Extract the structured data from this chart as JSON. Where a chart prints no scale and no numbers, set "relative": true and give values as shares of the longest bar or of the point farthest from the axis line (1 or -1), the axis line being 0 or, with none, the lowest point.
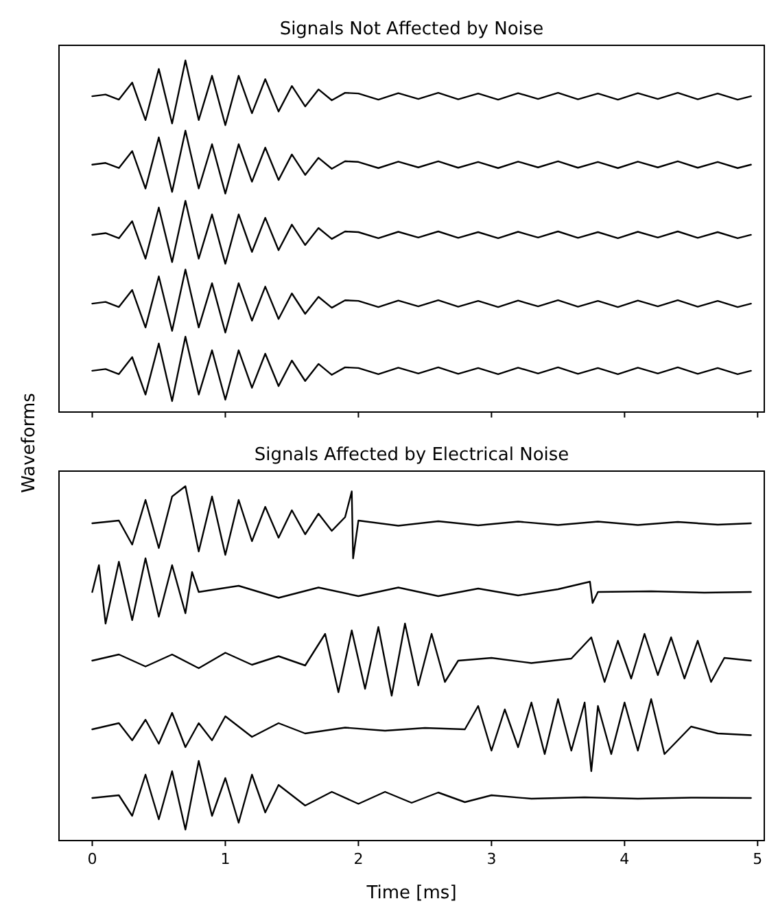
{
  "chart_data": [
    {
      "type": "line",
      "title": "Signals Not Affected by Noise",
      "relative": true,
      "tick_labels": false,
      "xlim": [
        -0.25,
        5.05
      ],
      "xticks": [
        0,
        1,
        2,
        3,
        4,
        5
      ],
      "x": [
        0,
        0.1,
        0.2,
        0.3,
        0.4,
        0.5,
        0.6,
        0.7,
        0.8,
        0.9,
        1.0,
        1.1,
        1.2,
        1.3,
        1.4,
        1.5,
        1.6,
        1.7,
        1.8,
        1.9,
        2.0,
        2.15,
        2.3,
        2.45,
        2.6,
        2.75,
        2.9,
        3.05,
        3.2,
        3.35,
        3.5,
        3.65,
        3.8,
        3.95,
        4.1,
        4.25,
        4.4,
        4.55,
        4.7,
        4.85,
        4.95
      ],
      "series": [
        {
          "color": "#000000",
          "values": [
            0.895,
            0.9,
            0.885,
            0.935,
            0.825,
            0.975,
            0.815,
            1.0,
            0.825,
            0.955,
            0.81,
            0.955,
            0.845,
            0.945,
            0.85,
            0.925,
            0.865,
            0.915,
            0.883,
            0.905,
            0.903,
            0.885,
            0.904,
            0.887,
            0.905,
            0.886,
            0.903,
            0.885,
            0.904,
            0.887,
            0.905,
            0.886,
            0.903,
            0.885,
            0.904,
            0.887,
            0.905,
            0.886,
            0.903,
            0.885,
            0.895
          ]
        },
        {
          "color": "#000000",
          "values": [
            0.694,
            0.699,
            0.684,
            0.734,
            0.624,
            0.774,
            0.614,
            0.794,
            0.624,
            0.754,
            0.609,
            0.754,
            0.644,
            0.744,
            0.649,
            0.724,
            0.664,
            0.714,
            0.682,
            0.704,
            0.702,
            0.684,
            0.703,
            0.686,
            0.704,
            0.685,
            0.702,
            0.684,
            0.703,
            0.686,
            0.704,
            0.685,
            0.702,
            0.684,
            0.703,
            0.686,
            0.704,
            0.685,
            0.702,
            0.684,
            0.694
          ]
        },
        {
          "color": "#000000",
          "values": [
            0.488,
            0.493,
            0.478,
            0.528,
            0.418,
            0.568,
            0.408,
            0.588,
            0.418,
            0.548,
            0.403,
            0.548,
            0.438,
            0.538,
            0.443,
            0.518,
            0.458,
            0.508,
            0.476,
            0.498,
            0.496,
            0.478,
            0.497,
            0.48,
            0.498,
            0.479,
            0.496,
            0.478,
            0.497,
            0.48,
            0.498,
            0.479,
            0.496,
            0.478,
            0.497,
            0.48,
            0.498,
            0.479,
            0.496,
            0.478,
            0.488
          ]
        },
        {
          "color": "#000000",
          "values": [
            0.286,
            0.291,
            0.276,
            0.326,
            0.216,
            0.366,
            0.206,
            0.386,
            0.216,
            0.346,
            0.201,
            0.346,
            0.236,
            0.336,
            0.241,
            0.316,
            0.256,
            0.306,
            0.274,
            0.296,
            0.294,
            0.276,
            0.295,
            0.278,
            0.296,
            0.277,
            0.294,
            0.276,
            0.295,
            0.278,
            0.296,
            0.277,
            0.294,
            0.276,
            0.295,
            0.278,
            0.296,
            0.277,
            0.294,
            0.276,
            0.286
          ]
        },
        {
          "color": "#000000",
          "values": [
            0.089,
            0.094,
            0.079,
            0.129,
            0.019,
            0.169,
            0,
            0.189,
            0.019,
            0.149,
            0.004,
            0.149,
            0.039,
            0.139,
            0.044,
            0.119,
            0.059,
            0.109,
            0.077,
            0.099,
            0.097,
            0.079,
            0.098,
            0.081,
            0.099,
            0.08,
            0.097,
            0.079,
            0.098,
            0.081,
            0.099,
            0.08,
            0.097,
            0.079,
            0.098,
            0.081,
            0.099,
            0.08,
            0.097,
            0.079,
            0.089
          ]
        }
      ]
    },
    {
      "type": "line",
      "title": "Signals Affected by Electrical Noise",
      "xlabel": "Time [ms]",
      "ylabel": "Waveforms",
      "relative": true,
      "tick_labels": "x",
      "xlim": [
        -0.25,
        5.05
      ],
      "xticks": [
        0,
        1,
        2,
        3,
        4,
        5
      ],
      "series": [
        {
          "color": "#000000",
          "x": [
            0,
            0.2,
            0.3,
            0.4,
            0.5,
            0.6,
            0.7,
            0.8,
            0.9,
            1.0,
            1.1,
            1.2,
            1.3,
            1.4,
            1.5,
            1.6,
            1.7,
            1.8,
            1.9,
            1.95,
            1.96,
            2.0,
            2.3,
            2.6,
            2.9,
            3.2,
            3.5,
            3.8,
            4.1,
            4.4,
            4.7,
            4.95
          ],
          "values": [
            0.892,
            0.9,
            0.83,
            0.96,
            0.82,
            0.97,
            1.0,
            0.81,
            0.97,
            0.8,
            0.96,
            0.84,
            0.94,
            0.85,
            0.93,
            0.86,
            0.92,
            0.87,
            0.91,
            0.985,
            0.79,
            0.9,
            0.885,
            0.898,
            0.886,
            0.897,
            0.887,
            0.897,
            0.887,
            0.896,
            0.888,
            0.892
          ]
        },
        {
          "color": "#000000",
          "x": [
            0,
            0.05,
            0.1,
            0.2,
            0.3,
            0.4,
            0.5,
            0.6,
            0.7,
            0.75,
            0.8,
            1.1,
            1.4,
            1.7,
            2.0,
            2.3,
            2.6,
            2.9,
            3.2,
            3.5,
            3.74,
            3.76,
            3.8,
            4.2,
            4.6,
            4.95
          ],
          "values": [
            0.692,
            0.77,
            0.6,
            0.78,
            0.61,
            0.79,
            0.62,
            0.77,
            0.63,
            0.75,
            0.692,
            0.71,
            0.675,
            0.705,
            0.68,
            0.705,
            0.68,
            0.702,
            0.682,
            0.7,
            0.722,
            0.66,
            0.692,
            0.694,
            0.69,
            0.692
          ]
        },
        {
          "color": "#000000",
          "x": [
            0,
            0.2,
            0.4,
            0.6,
            0.8,
            1.0,
            1.2,
            1.4,
            1.6,
            1.75,
            1.85,
            1.95,
            2.05,
            2.15,
            2.25,
            2.35,
            2.45,
            2.55,
            2.65,
            2.75,
            3.0,
            3.3,
            3.6,
            3.75,
            3.85,
            3.95,
            4.05,
            4.15,
            4.25,
            4.35,
            4.45,
            4.55,
            4.65,
            4.75,
            4.95
          ],
          "values": [
            0.492,
            0.51,
            0.475,
            0.51,
            0.47,
            0.515,
            0.48,
            0.505,
            0.478,
            0.57,
            0.4,
            0.58,
            0.41,
            0.59,
            0.39,
            0.6,
            0.42,
            0.57,
            0.43,
            0.492,
            0.5,
            0.485,
            0.498,
            0.56,
            0.43,
            0.55,
            0.44,
            0.57,
            0.45,
            0.56,
            0.44,
            0.55,
            0.43,
            0.5,
            0.492
          ]
        },
        {
          "color": "#000000",
          "x": [
            0,
            0.2,
            0.3,
            0.4,
            0.5,
            0.6,
            0.7,
            0.8,
            0.9,
            1.0,
            1.2,
            1.4,
            1.6,
            1.9,
            2.2,
            2.5,
            2.8,
            2.9,
            3.0,
            3.1,
            3.2,
            3.3,
            3.4,
            3.5,
            3.6,
            3.7,
            3.75,
            3.8,
            3.9,
            4.0,
            4.1,
            4.2,
            4.3,
            4.5,
            4.7,
            4.95
          ],
          "values": [
            0.292,
            0.31,
            0.26,
            0.32,
            0.25,
            0.34,
            0.24,
            0.31,
            0.26,
            0.33,
            0.27,
            0.31,
            0.28,
            0.297,
            0.288,
            0.296,
            0.292,
            0.36,
            0.23,
            0.35,
            0.24,
            0.37,
            0.22,
            0.38,
            0.23,
            0.37,
            0.17,
            0.36,
            0.22,
            0.37,
            0.23,
            0.38,
            0.22,
            0.3,
            0.28,
            0.275
          ]
        },
        {
          "color": "#000000",
          "x": [
            0,
            0.2,
            0.3,
            0.4,
            0.5,
            0.6,
            0.7,
            0.8,
            0.9,
            1.0,
            1.1,
            1.2,
            1.3,
            1.4,
            1.6,
            1.8,
            2.0,
            2.2,
            2.4,
            2.6,
            2.8,
            3.0,
            3.3,
            3.7,
            4.1,
            4.5,
            4.95
          ],
          "values": [
            0.092,
            0.1,
            0.04,
            0.16,
            0.03,
            0.17,
            0,
            0.2,
            0.04,
            0.15,
            0.02,
            0.16,
            0.05,
            0.13,
            0.07,
            0.11,
            0.075,
            0.11,
            0.078,
            0.108,
            0.08,
            0.1,
            0.09,
            0.094,
            0.09,
            0.093,
            0.092
          ]
        }
      ]
    }
  ]
}
